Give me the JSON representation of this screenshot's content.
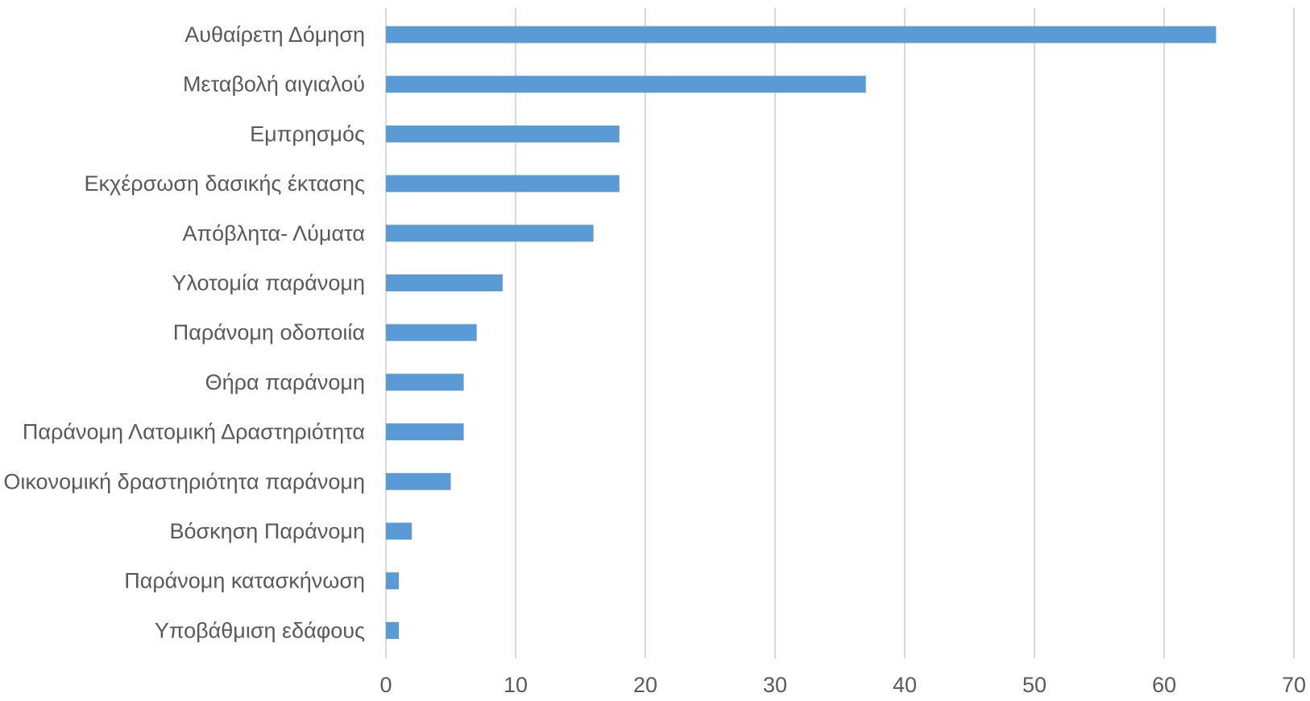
{
  "chart_data": {
    "type": "bar",
    "orientation": "horizontal",
    "categories": [
      "Αυθαίρετη Δόμηση",
      "Μεταβολή αιγιαλού",
      "Εμπρησμός",
      "Εκχέρσωση δασικής έκτασης",
      "Απόβλητα- Λύματα",
      "Υλοτομία παράνομη",
      "Παράνομη οδοποιία",
      "Θήρα παράνομη",
      "Παράνομη Λατομική Δραστηριότητα",
      "Οικονομική δραστηριότητα παράνομη",
      "Βόσκηση Παράνομη",
      "Παράνομη κατασκήνωση",
      "Υποβάθμιση εδάφους"
    ],
    "values": [
      64,
      37,
      18,
      18,
      16,
      9,
      7,
      6,
      6,
      5,
      2,
      1,
      1
    ],
    "xlim": [
      0,
      70
    ],
    "x_ticks": [
      "0",
      "10",
      "20",
      "30",
      "40",
      "50",
      "60",
      "70"
    ],
    "grid": true,
    "bar_color": "#5b9bd5",
    "grid_color": "#d9d9d9",
    "text_color": "#595959",
    "title": "",
    "xlabel": "",
    "ylabel": ""
  }
}
